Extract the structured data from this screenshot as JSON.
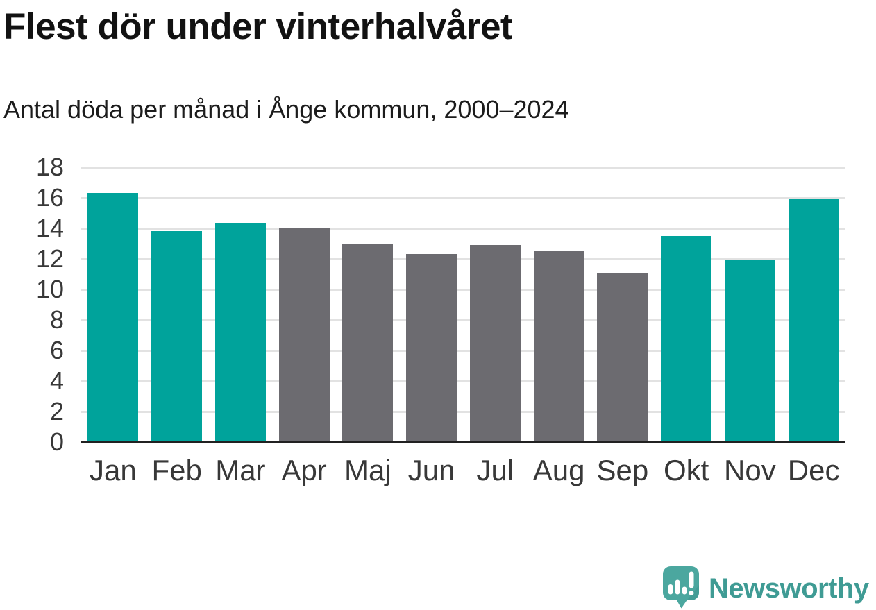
{
  "header": {
    "title": "Flest dör under vinterhalvåret",
    "subtitle": "Antal döda per månad i Ånge kommun, 2000–2024"
  },
  "chart_data": {
    "type": "bar",
    "title": "Flest dör under vinterhalvåret",
    "subtitle": "Antal döda per månad i Ånge kommun, 2000–2024",
    "categories": [
      "Jan",
      "Feb",
      "Mar",
      "Apr",
      "Maj",
      "Jun",
      "Jul",
      "Aug",
      "Sep",
      "Okt",
      "Nov",
      "Dec"
    ],
    "values": [
      16.3,
      13.8,
      14.3,
      14.0,
      13.0,
      12.3,
      12.9,
      12.5,
      11.1,
      13.5,
      11.9,
      15.9
    ],
    "highlighted_categories": [
      "Jan",
      "Feb",
      "Mar",
      "Okt",
      "Nov",
      "Dec"
    ],
    "highlight_meaning": "winter half-year months",
    "xlabel": "",
    "ylabel": "",
    "ylim": [
      0,
      18
    ],
    "yticks": [
      0,
      2,
      4,
      6,
      8,
      10,
      12,
      14,
      16,
      18
    ],
    "grid": true,
    "legend_position": "none",
    "colors": {
      "highlight_bar": "#00a39b",
      "default_bar": "#6c6b70",
      "gridline": "#e2e2e2",
      "axis_line": "#212121",
      "tick_text": "#383838"
    }
  },
  "branding": {
    "logo_text": "Newsworthy",
    "logo_text_color": "#3f9b94",
    "logo_mark_color": "#4ba79f",
    "logo_mark_icon_color": "#ffffff"
  }
}
